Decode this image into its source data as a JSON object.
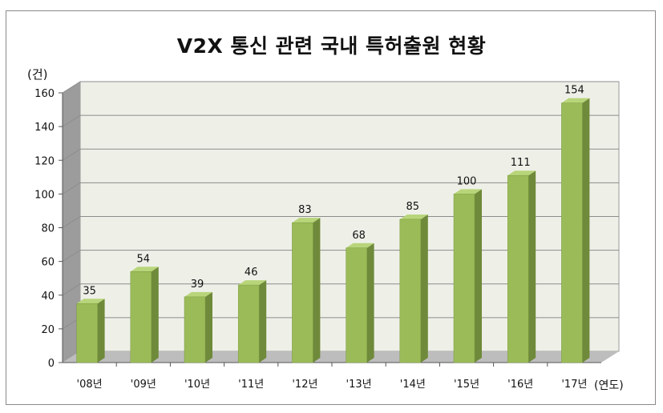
{
  "chart_data": {
    "type": "bar",
    "title": "V2X 통신 관련 국내 특허출원 현황",
    "ylabel": "(건)",
    "xlabel": "(연도)",
    "categories": [
      "'08년",
      "'09년",
      "'10년",
      "'11년",
      "'12년",
      "'13년",
      "'14년",
      "'15년",
      "'16년",
      "'17년"
    ],
    "values": [
      35,
      54,
      39,
      46,
      83,
      68,
      85,
      100,
      111,
      154
    ],
    "y_ticks": [
      "0",
      "20",
      "40",
      "60",
      "80",
      "100",
      "120",
      "140",
      "160"
    ],
    "ylim": [
      0,
      160
    ],
    "grid": true,
    "legend": "none",
    "colors": {
      "bar_front": "#9bbb59",
      "bar_side": "#6f8a3a",
      "bar_top": "#b8d57a",
      "plot_back": "#eef0e8",
      "plot_floor": "#bdbdbd",
      "plot_side": "#9c9c9c",
      "gridline": "#8c8c8c"
    }
  }
}
